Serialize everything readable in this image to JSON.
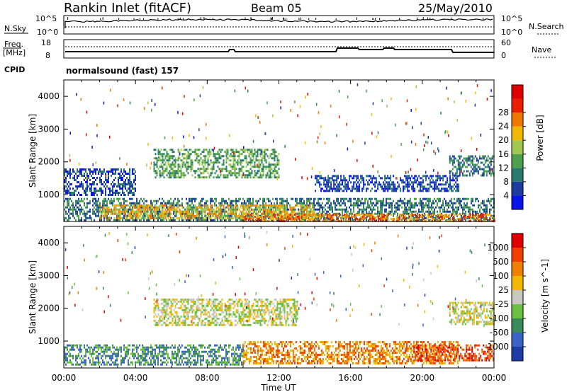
{
  "header": {
    "station": "Rankin Inlet (fitACF)",
    "beam": "Beam 05",
    "date": "25/May/2010"
  },
  "noise_panel": {
    "left_label": "N.Sky",
    "right_label": "N.Search",
    "left_ticks": [
      "10^5",
      "10^0"
    ],
    "right_ticks": [
      "10^5",
      "10^0"
    ]
  },
  "freq_panel": {
    "left_label_1": "Freq.",
    "left_label_2": "[MHz]",
    "left_ticks": [
      "18",
      "8"
    ],
    "right_ticks": [
      "60",
      "0"
    ],
    "right_label": "Nave",
    "cpid_label": "CPID",
    "cpid_text": "normalsound (fast) 157"
  },
  "chart_data": [
    {
      "type": "heatmap",
      "name": "power",
      "ylabel": "Slant Range [km]",
      "yticks": [
        "1000",
        "2000",
        "3000",
        "4000"
      ],
      "ylim": [
        180,
        4500
      ],
      "xlim": [
        0,
        24
      ],
      "xlabel": "Time UT",
      "xticks": [
        "00:00",
        "04:00",
        "08:00",
        "12:00",
        "16:00",
        "20:00",
        "00:00"
      ],
      "colorbar": {
        "label": "Power [dB]",
        "ticks": [
          "4",
          "8",
          "12",
          "16",
          "20",
          "24",
          "28"
        ],
        "colors": [
          "#0a14e6",
          "#1e3ca0",
          "#2a7a6e",
          "#4ea04e",
          "#a0c850",
          "#f0b800",
          "#f07800",
          "#e82000",
          "#dc0000"
        ]
      },
      "echo_bands": [
        {
          "t0": 0.0,
          "t1": 24.0,
          "r0": 250,
          "r1": 900,
          "level": 2
        },
        {
          "t0": 2.0,
          "t1": 14.0,
          "r0": 250,
          "r1": 700,
          "level": 5
        },
        {
          "t0": 5.0,
          "t1": 12.0,
          "r0": 1500,
          "r1": 2400,
          "level": 3
        },
        {
          "t0": 0.0,
          "t1": 4.0,
          "r0": 1000,
          "r1": 1800,
          "level": 1
        },
        {
          "t0": 14.0,
          "t1": 22.0,
          "r0": 1100,
          "r1": 1600,
          "level": 1
        },
        {
          "t0": 21.5,
          "t1": 24.0,
          "r0": 1600,
          "r1": 2200,
          "level": 2
        },
        {
          "t0": 10.0,
          "t1": 24.0,
          "r0": 200,
          "r1": 420,
          "level": 6
        }
      ]
    },
    {
      "type": "heatmap",
      "name": "velocity",
      "ylabel": "Slant Range [km]",
      "yticks": [
        "1000",
        "2000",
        "3000",
        "4000"
      ],
      "ylim": [
        180,
        4500
      ],
      "xlim": [
        0,
        24
      ],
      "xlabel": "Time UT",
      "xticks": [
        "00:00",
        "04:00",
        "08:00",
        "12:00",
        "16:00",
        "20:00",
        "00:00"
      ],
      "colorbar": {
        "label": "Velocity [m s^-1]",
        "ticks": [
          "1000",
          "500",
          "100",
          "25",
          "-25",
          "-100",
          "-500",
          "-1000"
        ],
        "colors": [
          "#1e3ca8",
          "#3c64c8",
          "#3a8a5a",
          "#6cc040",
          "#c8c8c0",
          "#f0b800",
          "#f08000",
          "#f04000",
          "#dc0000"
        ]
      },
      "echo_bands": [
        {
          "t0": 0.0,
          "t1": 10.0,
          "r0": 300,
          "r1": 900,
          "level": 2
        },
        {
          "t0": 5.0,
          "t1": 13.0,
          "r0": 1500,
          "r1": 2300,
          "level": 4
        },
        {
          "t0": 10.0,
          "t1": 22.0,
          "r0": 300,
          "r1": 1000,
          "level": 6
        },
        {
          "t0": 21.5,
          "t1": 24.0,
          "r0": 1500,
          "r1": 2200,
          "level": 4
        },
        {
          "t0": 19.5,
          "t1": 24.0,
          "r0": 400,
          "r1": 900,
          "level": 7
        }
      ]
    }
  ]
}
